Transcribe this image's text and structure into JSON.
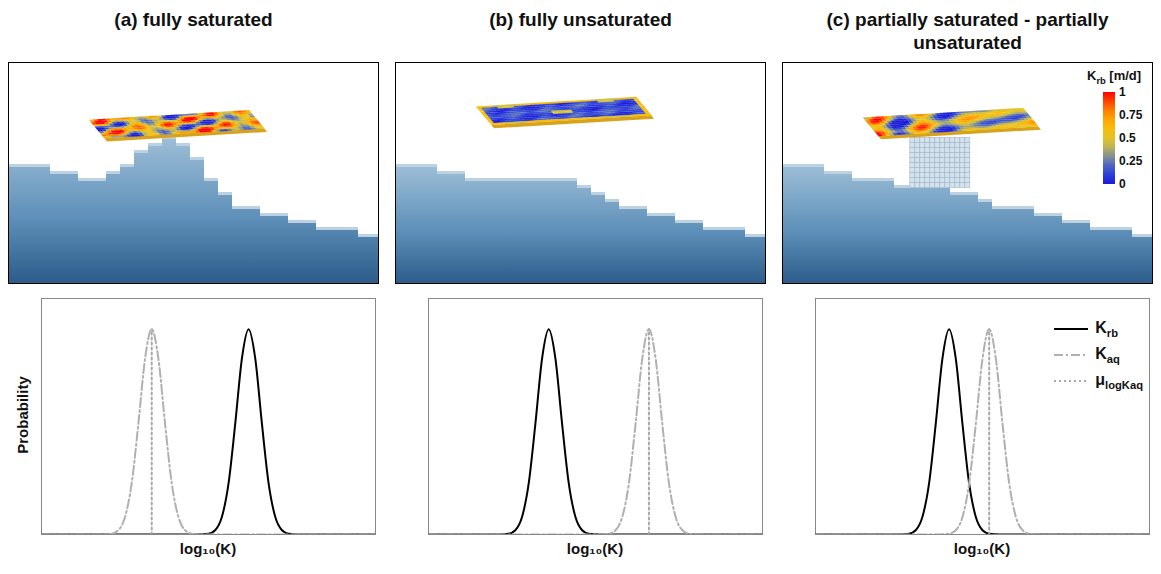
{
  "chart_data": [
    {
      "type": "line",
      "title": "(a) fully saturated",
      "xlabel": "log₁₀(K)",
      "ylabel": "Probability",
      "xlim": [
        0,
        10
      ],
      "ylim": [
        0,
        1.15
      ],
      "xticks": [],
      "yticks": [],
      "tick_labels": false,
      "series": [
        {
          "name": "Krb",
          "color": "#000000",
          "line_style": "solid",
          "x": [
            0,
            4.7,
            5.0,
            5.2,
            5.4,
            5.6,
            5.8,
            6.0,
            6.2,
            6.4,
            6.6,
            6.8,
            7.0,
            7.2,
            7.4,
            7.7,
            10
          ],
          "values": [
            0,
            0,
            0.004,
            0.021,
            0.085,
            0.249,
            0.539,
            0.857,
            1,
            0.857,
            0.539,
            0.249,
            0.085,
            0.021,
            0.004,
            0,
            0
          ]
        },
        {
          "name": "Kaq",
          "color": "#b0b0b0",
          "line_style": "dashdot",
          "x": [
            0,
            1.8,
            2.1,
            2.3,
            2.5,
            2.7,
            2.9,
            3.1,
            3.3,
            3.5,
            3.7,
            3.9,
            4.1,
            4.3,
            4.5,
            4.8,
            10
          ],
          "values": [
            0,
            0,
            0.004,
            0.021,
            0.085,
            0.249,
            0.539,
            0.857,
            1,
            0.857,
            0.539,
            0.249,
            0.085,
            0.021,
            0.004,
            0,
            0
          ]
        },
        {
          "name": "μlogKaq",
          "color": "#a8a8a8",
          "line_style": "dotted",
          "x": [
            3.3,
            3.3
          ],
          "values": [
            0,
            1
          ]
        }
      ]
    },
    {
      "type": "line",
      "title": "(b) fully unsaturated",
      "xlabel": "log₁₀(K)",
      "xlim": [
        0,
        10
      ],
      "ylim": [
        0,
        1.15
      ],
      "xticks": [],
      "yticks": [],
      "tick_labels": false,
      "series": [
        {
          "name": "Krb",
          "color": "#000000",
          "line_style": "solid",
          "x": [
            0,
            2.1,
            2.4,
            2.6,
            2.8,
            3.0,
            3.2,
            3.4,
            3.6,
            3.8,
            4.0,
            4.2,
            4.4,
            4.6,
            4.8,
            5.1,
            10
          ],
          "values": [
            0,
            0,
            0.004,
            0.021,
            0.085,
            0.249,
            0.539,
            0.857,
            1,
            0.857,
            0.539,
            0.249,
            0.085,
            0.021,
            0.004,
            0,
            0
          ]
        },
        {
          "name": "Kaq",
          "color": "#b0b0b0",
          "line_style": "dashdot",
          "x": [
            0,
            5.1,
            5.4,
            5.6,
            5.8,
            6.0,
            6.2,
            6.4,
            6.6,
            6.8,
            7.0,
            7.2,
            7.4,
            7.6,
            7.8,
            8.1,
            10
          ],
          "values": [
            0,
            0,
            0.004,
            0.021,
            0.085,
            0.249,
            0.539,
            0.857,
            1,
            0.857,
            0.539,
            0.249,
            0.085,
            0.021,
            0.004,
            0,
            0
          ]
        },
        {
          "name": "μlogKaq",
          "color": "#a8a8a8",
          "line_style": "dotted",
          "x": [
            6.6,
            6.6
          ],
          "values": [
            0,
            1
          ]
        }
      ]
    },
    {
      "type": "line",
      "title": "(c) partially saturated - partially unsaturated",
      "xlabel": "log₁₀(K)",
      "xlim": [
        0,
        10
      ],
      "ylim": [
        0,
        1.15
      ],
      "xticks": [],
      "yticks": [],
      "tick_labels": false,
      "legend": "top-right",
      "series": [
        {
          "name": "Krb",
          "color": "#000000",
          "line_style": "solid",
          "x": [
            0,
            2.5,
            2.8,
            3.0,
            3.2,
            3.4,
            3.6,
            3.8,
            4.0,
            4.2,
            4.4,
            4.6,
            4.8,
            5.0,
            5.2,
            5.5,
            10
          ],
          "values": [
            0,
            0,
            0.004,
            0.021,
            0.085,
            0.249,
            0.539,
            0.857,
            1,
            0.857,
            0.539,
            0.249,
            0.085,
            0.021,
            0.004,
            0,
            0
          ]
        },
        {
          "name": "Kaq",
          "color": "#b0b0b0",
          "line_style": "dashdot",
          "x": [
            0,
            3.7,
            4.0,
            4.2,
            4.4,
            4.6,
            4.8,
            5.0,
            5.2,
            5.4,
            5.6,
            5.8,
            6.0,
            6.2,
            6.4,
            6.7,
            10
          ],
          "values": [
            0,
            0,
            0.004,
            0.021,
            0.085,
            0.249,
            0.539,
            0.857,
            1,
            0.857,
            0.539,
            0.249,
            0.085,
            0.021,
            0.004,
            0,
            0
          ]
        },
        {
          "name": "μlogKaq",
          "color": "#a8a8a8",
          "line_style": "dotted",
          "x": [
            5.2,
            5.2
          ],
          "values": [
            0,
            1
          ]
        }
      ]
    }
  ],
  "colorbar": {
    "label": "Krb [m/d]",
    "range": [
      0,
      1
    ],
    "ticks": [
      0,
      0.25,
      0.5,
      0.75,
      1
    ]
  }
}
